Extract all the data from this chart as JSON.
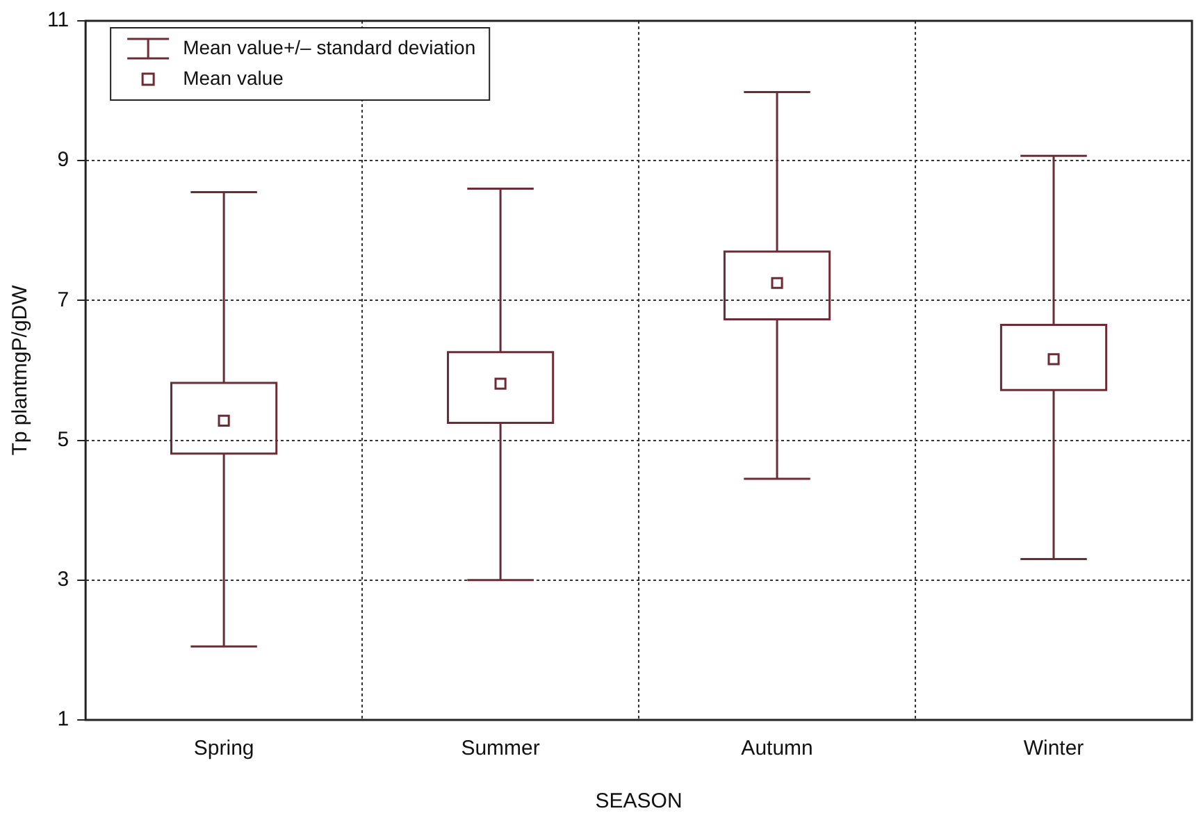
{
  "chart_data": {
    "type": "box",
    "categories": [
      "Spring",
      "Summer",
      "Autumn",
      "Winter"
    ],
    "xlabel": "SEASON",
    "ylabel": "Tp plantmgP/gDW",
    "ylim": [
      1,
      11
    ],
    "yticks": [
      1,
      3,
      5,
      7,
      9,
      11
    ],
    "grid": true,
    "legend": "top left",
    "series": [
      {
        "name": "Mean value+/– standard deviation",
        "color": "#6b2c35",
        "boxes": [
          {
            "low": 2.05,
            "q1": 4.81,
            "q3": 5.82,
            "high": 8.55
          },
          {
            "low": 3.0,
            "q1": 5.25,
            "q3": 6.26,
            "high": 8.6
          },
          {
            "low": 4.45,
            "q1": 6.73,
            "q3": 7.7,
            "high": 9.98
          },
          {
            "low": 3.3,
            "q1": 5.72,
            "q3": 6.65,
            "high": 9.07
          }
        ]
      },
      {
        "name": "Mean value",
        "type": "scatter",
        "marker": "square",
        "color": "#6b2c35",
        "x": [
          "Spring",
          "Summer",
          "Autumn",
          "Winter"
        ],
        "values": [
          5.28,
          5.81,
          7.25,
          6.16
        ]
      }
    ]
  }
}
